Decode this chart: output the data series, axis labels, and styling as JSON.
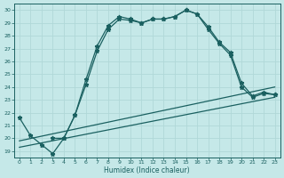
{
  "xlabel": "Humidex (Indice chaleur)",
  "xlim": [
    -0.5,
    23.5
  ],
  "ylim": [
    18.5,
    30.5
  ],
  "xticks": [
    0,
    1,
    2,
    3,
    4,
    5,
    6,
    7,
    8,
    9,
    10,
    11,
    12,
    13,
    14,
    15,
    16,
    17,
    18,
    19,
    20,
    21,
    22,
    23
  ],
  "yticks": [
    19,
    20,
    21,
    22,
    23,
    24,
    25,
    26,
    27,
    28,
    29,
    30
  ],
  "bg_color": "#c5e8e8",
  "line_color": "#1a6060",
  "grid_color": "#b0d8d8",
  "line1": {
    "x": [
      0,
      1,
      2,
      3,
      4,
      5,
      6,
      7,
      8,
      9,
      10,
      11,
      12,
      13,
      14,
      15,
      16,
      17,
      18,
      19,
      20,
      21,
      22,
      23
    ],
    "y": [
      21.6,
      20.2,
      19.5,
      18.8,
      20.0,
      21.8,
      24.6,
      27.2,
      28.8,
      29.5,
      29.3,
      29.0,
      29.3,
      29.3,
      29.5,
      30.0,
      29.7,
      28.7,
      27.5,
      26.7,
      24.3,
      23.3,
      23.6,
      23.4
    ],
    "marker": "*",
    "markersize": 3.5
  },
  "line2": {
    "x": [
      3,
      4,
      5,
      6,
      7,
      8,
      9,
      10,
      11,
      12,
      13,
      14,
      15,
      16,
      17,
      18,
      19,
      20,
      21,
      22,
      23
    ],
    "y": [
      20.0,
      20.0,
      21.8,
      24.2,
      26.8,
      28.5,
      29.3,
      29.2,
      29.0,
      29.3,
      29.3,
      29.5,
      30.0,
      29.7,
      28.5,
      27.4,
      26.5,
      24.0,
      23.2,
      23.5,
      23.4
    ],
    "marker": "*",
    "markersize": 3.5
  },
  "line3": {
    "x": [
      0,
      23
    ],
    "y": [
      19.8,
      24.0
    ]
  },
  "line4": {
    "x": [
      0,
      23
    ],
    "y": [
      19.3,
      23.2
    ]
  }
}
